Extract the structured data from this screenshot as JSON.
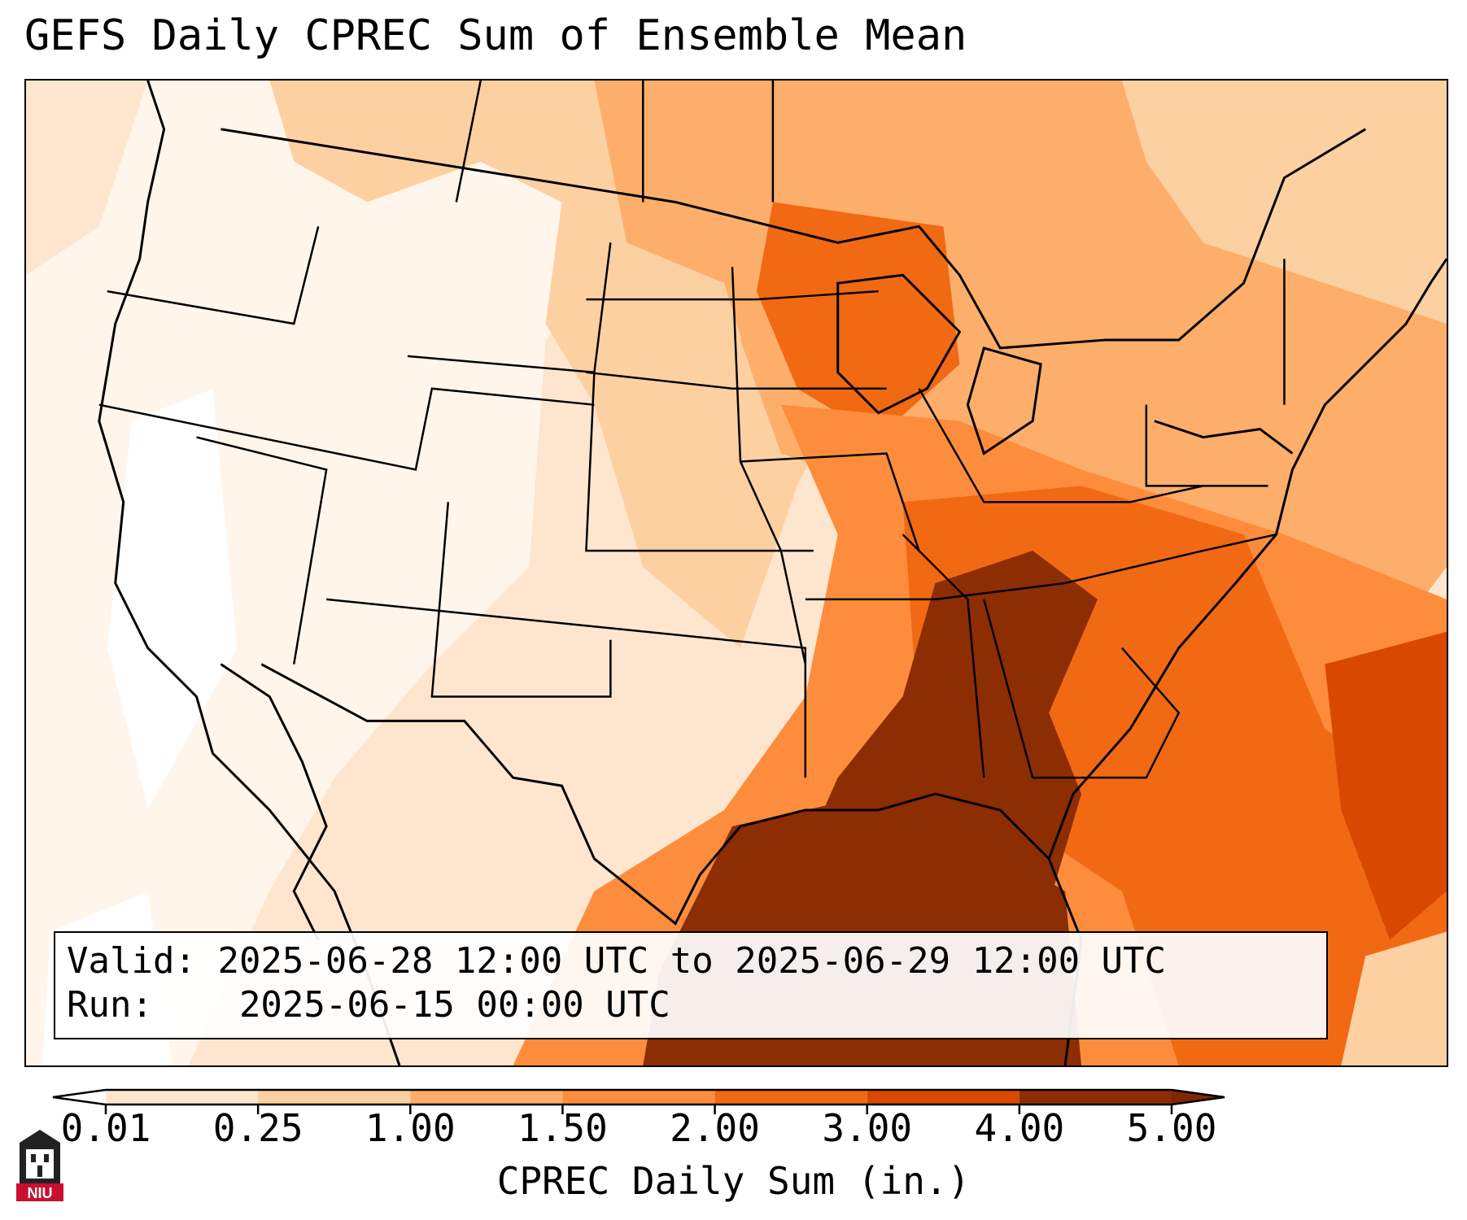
{
  "title": "GEFS Daily CPREC Sum of Ensemble Mean",
  "info": {
    "valid_label": "Valid:",
    "valid_value": "2025-06-28 12:00 UTC to 2025-06-29 12:00 UTC",
    "run_label": "Run:",
    "run_value": "2025-06-15 00:00 UTC"
  },
  "colorbar": {
    "label": "CPREC Daily Sum (in.)",
    "ticks": [
      "0.01",
      "0.25",
      "1.00",
      "1.50",
      "2.00",
      "3.00",
      "4.00",
      "5.00"
    ],
    "colors": [
      "#fff5eb",
      "#fee6ce",
      "#fdd0a2",
      "#fdae6b",
      "#fd8d3c",
      "#f16913",
      "#d94801",
      "#8c2d04"
    ],
    "under_color": "#ffffff",
    "over_color": "#7f2704"
  },
  "logo": {
    "text": "NIU",
    "color": "#c8102e"
  }
}
